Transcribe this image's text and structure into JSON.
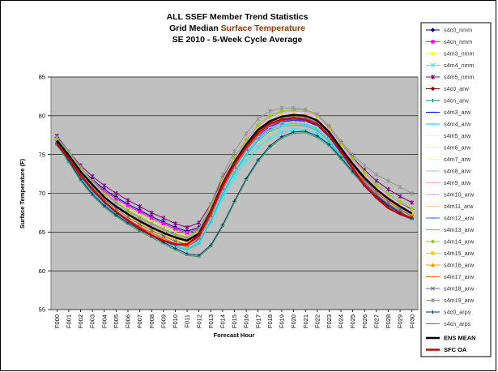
{
  "chart_data": {
    "type": "line",
    "title_line1": "ALL SSEF Member Trend Statistics",
    "title_line2_prefix": "Grid Median  ",
    "title_line2_highlight": "Surface Temperature",
    "title_line3": "SE 2010 - 5-Week Cycle Average",
    "xlabel": "Forecast Hour",
    "ylabel": "Surface Temperature (F)",
    "ylim": [
      55,
      85
    ],
    "yticks": [
      55,
      60,
      65,
      70,
      75,
      80,
      85
    ],
    "grid": true,
    "legend_position": "right",
    "background_color": "#c0c0c0",
    "highlight_color": "#993300",
    "x": [
      "F000",
      "F001",
      "F002",
      "F003",
      "F004",
      "F005",
      "F006",
      "F007",
      "F008",
      "F009",
      "F010",
      "F011",
      "F012",
      "F013",
      "F014",
      "F015",
      "F016",
      "F017",
      "F018",
      "F019",
      "F020",
      "F021",
      "F022",
      "F023",
      "F024",
      "F025",
      "F026",
      "F027",
      "F028",
      "F029",
      "F030"
    ],
    "series": [
      {
        "name": "s4c0_nmm",
        "color": "#000080",
        "marker": "diamond",
        "values": [
          77.2,
          75.0,
          73.2,
          71.8,
          70.5,
          69.5,
          68.6,
          67.8,
          67.0,
          66.3,
          65.6,
          65.1,
          65.6,
          67.8,
          71.0,
          73.6,
          75.7,
          77.4,
          78.6,
          79.3,
          79.6,
          79.5,
          78.9,
          77.6,
          75.6,
          73.7,
          72.1,
          70.7,
          69.6,
          68.7,
          67.9
        ]
      },
      {
        "name": "s4cn_nmm",
        "color": "#ff00ff",
        "marker": "square",
        "values": [
          77.0,
          74.8,
          73.0,
          71.6,
          70.3,
          69.3,
          68.4,
          67.6,
          66.8,
          66.1,
          65.4,
          64.9,
          65.4,
          67.6,
          70.8,
          73.4,
          75.5,
          77.2,
          78.4,
          79.1,
          79.4,
          79.3,
          78.7,
          77.4,
          75.4,
          73.5,
          71.9,
          70.5,
          69.4,
          68.5,
          67.7
        ]
      },
      {
        "name": "s4m3_nmm",
        "color": "#ffff00",
        "marker": "triangle",
        "values": [
          76.6,
          74.4,
          72.6,
          71.2,
          69.9,
          68.9,
          68.0,
          67.2,
          66.4,
          65.7,
          65.0,
          64.5,
          65.0,
          67.2,
          70.4,
          73.0,
          75.1,
          76.8,
          78.0,
          78.7,
          79.0,
          78.9,
          78.3,
          77.0,
          75.0,
          73.1,
          71.5,
          70.1,
          69.0,
          68.1,
          67.3
        ]
      },
      {
        "name": "s4m4_nmm",
        "color": "#00ffff",
        "marker": "x",
        "values": [
          76.3,
          74.0,
          72.2,
          70.8,
          69.4,
          68.4,
          67.5,
          66.6,
          65.8,
          65.1,
          64.4,
          63.8,
          64.2,
          66.2,
          69.4,
          72.0,
          74.2,
          75.9,
          77.1,
          77.9,
          78.2,
          78.1,
          77.6,
          76.4,
          74.6,
          72.8,
          71.2,
          69.9,
          68.8,
          67.9,
          67.1
        ]
      },
      {
        "name": "s4m5_nmm",
        "color": "#800080",
        "marker": "star",
        "values": [
          77.4,
          75.4,
          73.6,
          72.2,
          71.0,
          70.0,
          69.1,
          68.3,
          67.5,
          66.8,
          66.1,
          65.6,
          66.2,
          68.6,
          72.0,
          74.6,
          76.7,
          78.3,
          79.5,
          80.2,
          80.5,
          80.4,
          79.8,
          78.5,
          76.5,
          74.6,
          73.0,
          71.6,
          70.5,
          69.6,
          68.8
        ]
      },
      {
        "name": "s4c0_arw",
        "color": "#800000",
        "marker": "circle",
        "values": [
          76.8,
          74.8,
          72.7,
          70.9,
          69.3,
          68.1,
          67.0,
          66.1,
          65.3,
          64.6,
          63.9,
          63.5,
          64.4,
          67.3,
          70.8,
          73.6,
          75.9,
          77.8,
          79.0,
          79.6,
          79.8,
          79.7,
          79.1,
          77.6,
          75.5,
          73.5,
          71.7,
          70.1,
          68.9,
          67.9,
          67.0
        ]
      },
      {
        "name": "s4cn_arw",
        "color": "#008080",
        "marker": "plus",
        "values": [
          76.6,
          74.6,
          72.5,
          70.7,
          69.1,
          67.9,
          66.8,
          65.9,
          65.1,
          64.4,
          63.7,
          63.3,
          64.2,
          67.1,
          70.6,
          73.4,
          75.7,
          77.6,
          78.8,
          79.4,
          79.6,
          79.5,
          78.9,
          77.4,
          75.3,
          73.3,
          71.5,
          69.9,
          68.7,
          67.7,
          66.8
        ]
      },
      {
        "name": "s4m3_arw",
        "color": "#0000ff",
        "marker": "dash",
        "values": [
          76.4,
          74.4,
          72.3,
          70.5,
          68.9,
          67.7,
          66.6,
          65.7,
          64.9,
          64.2,
          63.5,
          63.1,
          64.0,
          66.9,
          70.4,
          73.2,
          75.5,
          77.4,
          78.6,
          79.2,
          79.4,
          79.3,
          78.7,
          77.2,
          75.1,
          73.1,
          71.3,
          69.7,
          68.5,
          67.5,
          66.6
        ]
      },
      {
        "name": "s4m4_arw",
        "color": "#00ccff",
        "marker": "dash",
        "values": [
          76.2,
          74.0,
          71.9,
          70.1,
          68.5,
          67.3,
          66.2,
          65.3,
          64.5,
          63.8,
          63.1,
          62.7,
          63.5,
          66.3,
          69.8,
          72.6,
          74.9,
          76.8,
          78.0,
          78.6,
          78.8,
          78.7,
          78.1,
          76.7,
          74.7,
          72.8,
          71.0,
          69.5,
          68.3,
          67.3,
          66.5
        ]
      },
      {
        "name": "s4m5_arw",
        "color": "#ccffff",
        "marker": "dash",
        "values": [
          76.9,
          75.0,
          73.0,
          71.2,
          69.7,
          68.5,
          67.4,
          66.5,
          65.7,
          65.0,
          64.3,
          63.9,
          64.9,
          67.9,
          71.5,
          74.3,
          76.6,
          78.5,
          79.7,
          80.3,
          80.5,
          80.4,
          79.8,
          78.3,
          76.2,
          74.2,
          72.4,
          70.8,
          69.6,
          68.6,
          67.7
        ]
      },
      {
        "name": "s4m6_arw",
        "color": "#ccffcc",
        "marker": "dash",
        "values": [
          76.7,
          74.8,
          72.8,
          71.0,
          69.5,
          68.3,
          67.2,
          66.3,
          65.5,
          64.8,
          64.1,
          63.7,
          64.7,
          67.7,
          71.3,
          74.1,
          76.4,
          78.3,
          79.5,
          80.1,
          80.3,
          80.2,
          79.6,
          78.1,
          76.0,
          74.0,
          72.2,
          70.6,
          69.4,
          68.4,
          67.5
        ]
      },
      {
        "name": "s4m7_arw",
        "color": "#ffff99",
        "marker": "dash",
        "values": [
          76.5,
          74.5,
          72.4,
          70.6,
          69.1,
          67.9,
          66.8,
          65.9,
          65.1,
          64.4,
          63.7,
          63.3,
          64.3,
          67.2,
          70.7,
          73.5,
          75.8,
          77.7,
          78.9,
          79.5,
          79.7,
          79.6,
          79.0,
          77.5,
          75.4,
          73.4,
          71.6,
          70.0,
          68.8,
          67.8,
          66.9
        ]
      },
      {
        "name": "s4m8_arw",
        "color": "#99ccff",
        "marker": "dash",
        "values": [
          76.3,
          74.3,
          72.2,
          70.4,
          68.8,
          67.6,
          66.5,
          65.6,
          64.8,
          64.1,
          63.4,
          63.0,
          63.9,
          66.8,
          70.3,
          73.1,
          75.4,
          77.3,
          78.5,
          79.1,
          79.3,
          79.2,
          78.6,
          77.1,
          75.0,
          73.0,
          71.2,
          69.6,
          68.4,
          67.4,
          66.5
        ]
      },
      {
        "name": "s4m9_arw",
        "color": "#ff99cc",
        "marker": "dash",
        "values": [
          76.8,
          74.9,
          72.9,
          71.1,
          69.6,
          68.4,
          67.3,
          66.4,
          65.6,
          64.9,
          64.2,
          63.8,
          64.8,
          67.8,
          71.4,
          74.2,
          76.5,
          78.4,
          79.6,
          80.2,
          80.4,
          80.3,
          79.7,
          78.2,
          76.1,
          74.1,
          72.3,
          70.7,
          69.5,
          68.5,
          67.6
        ]
      },
      {
        "name": "s4m10_arw",
        "color": "#cc99ff",
        "marker": "dash",
        "values": [
          77.0,
          75.1,
          73.1,
          71.3,
          69.8,
          68.6,
          67.5,
          66.6,
          65.8,
          65.1,
          64.4,
          64.0,
          65.0,
          68.0,
          71.6,
          74.4,
          76.7,
          78.6,
          79.8,
          80.4,
          80.6,
          80.5,
          79.9,
          78.4,
          76.3,
          74.3,
          72.5,
          70.9,
          69.7,
          68.7,
          67.8
        ]
      },
      {
        "name": "s4m11_arw",
        "color": "#ffcc99",
        "marker": "dash",
        "values": [
          76.6,
          74.6,
          72.6,
          70.8,
          69.3,
          68.1,
          67.0,
          66.1,
          65.3,
          64.6,
          63.9,
          63.5,
          64.5,
          67.5,
          71.1,
          73.9,
          76.2,
          78.1,
          79.3,
          79.9,
          80.1,
          80.0,
          79.4,
          77.9,
          75.8,
          73.8,
          72.0,
          70.4,
          69.2,
          68.2,
          67.3
        ]
      },
      {
        "name": "s4m12_arw",
        "color": "#3366ff",
        "marker": "dash",
        "values": [
          76.4,
          74.4,
          72.3,
          70.5,
          68.9,
          67.7,
          66.6,
          65.7,
          64.9,
          64.2,
          63.5,
          63.1,
          64.1,
          67.0,
          70.5,
          73.3,
          75.6,
          77.5,
          78.7,
          79.3,
          79.5,
          79.4,
          78.8,
          77.3,
          75.2,
          73.2,
          71.4,
          69.8,
          68.6,
          67.6,
          66.7
        ]
      },
      {
        "name": "s4m13_arw",
        "color": "#33cccc",
        "marker": "dash",
        "values": [
          76.2,
          74.1,
          72.0,
          70.2,
          68.6,
          67.4,
          66.3,
          65.4,
          64.6,
          63.9,
          63.2,
          62.8,
          63.7,
          66.5,
          70.0,
          72.8,
          75.1,
          77.0,
          78.2,
          78.8,
          79.0,
          78.9,
          78.3,
          76.9,
          74.9,
          73.0,
          71.2,
          69.6,
          68.4,
          67.4,
          66.6
        ]
      },
      {
        "name": "s4m14_arw",
        "color": "#99cc00",
        "marker": "diamond",
        "values": [
          77.1,
          75.3,
          73.3,
          71.5,
          70.0,
          68.8,
          67.7,
          66.8,
          66.0,
          65.3,
          64.6,
          64.2,
          65.2,
          68.2,
          71.8,
          74.6,
          76.9,
          78.8,
          80.0,
          80.6,
          80.8,
          80.7,
          80.1,
          78.6,
          76.5,
          74.5,
          72.7,
          71.1,
          69.9,
          68.9,
          68.0
        ]
      },
      {
        "name": "s4m15_arw",
        "color": "#ffcc00",
        "marker": "square",
        "values": [
          76.7,
          74.7,
          72.7,
          70.9,
          69.4,
          68.2,
          67.1,
          66.2,
          65.4,
          64.7,
          64.0,
          63.6,
          64.6,
          67.6,
          71.2,
          74.0,
          76.3,
          78.2,
          79.4,
          80.0,
          80.2,
          80.1,
          79.5,
          78.0,
          75.9,
          73.9,
          72.1,
          70.5,
          69.3,
          68.3,
          67.4
        ]
      },
      {
        "name": "s4m16_arw",
        "color": "#ff9900",
        "marker": "triangle",
        "values": [
          76.5,
          74.5,
          72.5,
          70.7,
          69.2,
          68.0,
          66.9,
          66.0,
          65.2,
          64.5,
          63.8,
          63.4,
          64.4,
          67.4,
          71.0,
          73.8,
          76.1,
          78.0,
          79.2,
          79.8,
          80.0,
          79.9,
          79.3,
          77.8,
          75.7,
          73.7,
          71.9,
          70.3,
          69.1,
          68.1,
          67.2
        ]
      },
      {
        "name": "s4m17_arw",
        "color": "#ff6600",
        "marker": "dash",
        "values": [
          76.3,
          74.3,
          72.2,
          70.4,
          68.9,
          67.7,
          66.6,
          65.7,
          64.9,
          64.2,
          63.5,
          63.1,
          64.1,
          67.0,
          70.6,
          73.4,
          75.7,
          77.6,
          78.8,
          79.4,
          79.6,
          79.5,
          78.9,
          77.4,
          75.3,
          73.3,
          71.5,
          69.9,
          68.7,
          67.7,
          66.8
        ]
      },
      {
        "name": "s4m18_arw",
        "color": "#666699",
        "marker": "x",
        "values": [
          76.6,
          74.6,
          72.5,
          70.7,
          69.2,
          68.0,
          66.9,
          66.0,
          65.2,
          64.5,
          63.8,
          63.4,
          64.3,
          67.2,
          70.8,
          73.6,
          75.9,
          77.8,
          79.0,
          79.6,
          79.8,
          79.7,
          79.1,
          77.6,
          75.5,
          73.5,
          71.7,
          70.1,
          68.9,
          67.9,
          67.0
        ]
      },
      {
        "name": "s4m19_arw",
        "color": "#969696",
        "marker": "star",
        "values": [
          77.2,
          75.4,
          73.4,
          71.6,
          70.1,
          68.9,
          67.8,
          66.9,
          66.1,
          65.4,
          64.7,
          64.3,
          65.4,
          68.6,
          72.4,
          75.4,
          77.7,
          79.6,
          80.6,
          81.0,
          81.0,
          80.8,
          80.2,
          78.7,
          76.7,
          75.0,
          73.6,
          72.4,
          71.6,
          70.8,
          70.0
        ]
      },
      {
        "name": "s4c0_arps",
        "color": "#003366",
        "marker": "plus",
        "values": [
          76.5,
          74.2,
          71.8,
          69.9,
          68.4,
          67.2,
          66.2,
          65.3,
          64.5,
          63.7,
          62.9,
          62.2,
          62.0,
          63.3,
          65.9,
          69.0,
          71.9,
          74.3,
          76.1,
          77.3,
          77.9,
          78.0,
          77.4,
          76.3,
          74.6,
          72.8,
          71.1,
          69.6,
          68.4,
          67.5,
          66.8
        ]
      },
      {
        "name": "s4cn_arps",
        "color": "#339966",
        "marker": "dash",
        "values": [
          76.3,
          74.0,
          71.6,
          69.7,
          68.2,
          67.0,
          66.0,
          65.1,
          64.3,
          63.5,
          62.7,
          62.0,
          61.8,
          63.1,
          65.7,
          68.8,
          71.7,
          74.1,
          75.9,
          77.1,
          77.7,
          77.8,
          77.2,
          76.1,
          74.4,
          72.6,
          70.9,
          69.4,
          68.2,
          67.3,
          66.6
        ]
      },
      {
        "name": "ENS MEAN",
        "color": "#000000",
        "marker": "none",
        "width": 2.5,
        "values": [
          76.8,
          74.9,
          72.8,
          71.1,
          69.5,
          68.3,
          67.3,
          66.4,
          65.6,
          64.9,
          64.3,
          63.9,
          64.8,
          67.7,
          71.2,
          74.0,
          76.3,
          78.2,
          79.3,
          79.9,
          80.1,
          80.0,
          79.4,
          77.9,
          75.8,
          73.8,
          72.0,
          70.5,
          69.3,
          68.3,
          67.4
        ]
      },
      {
        "name": "SFC OA",
        "color": "#cc0000",
        "marker": "none",
        "width": 2.5,
        "values": [
          76.3,
          74.5,
          72.3,
          70.5,
          68.9,
          67.6,
          66.5,
          65.5,
          64.6,
          63.9,
          63.4,
          63.4,
          64.6,
          67.6,
          71.0,
          73.8,
          76.0,
          77.8,
          79.0,
          79.5,
          79.7,
          79.5,
          78.9,
          77.4,
          75.4,
          73.2,
          71.0,
          69.4,
          68.1,
          67.3,
          66.8
        ]
      }
    ]
  }
}
